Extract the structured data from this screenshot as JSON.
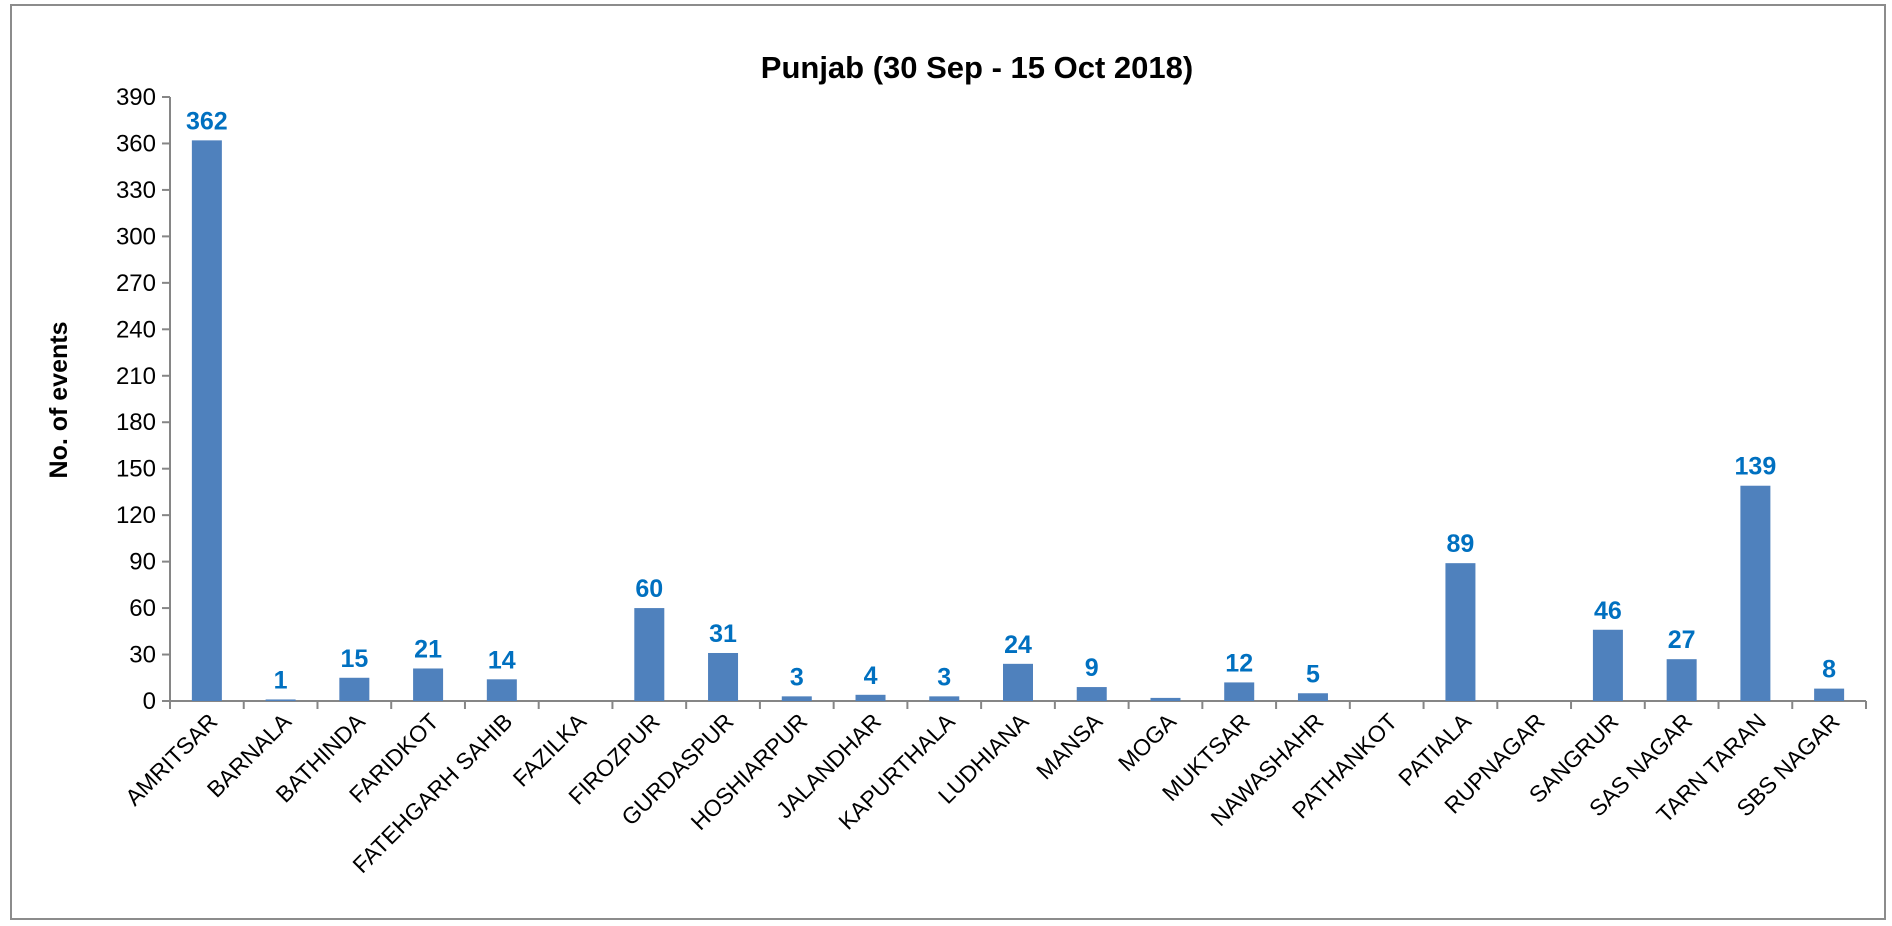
{
  "chart_data": {
    "type": "bar",
    "title": "Punjab (30 Sep - 15 Oct 2018)",
    "xlabel": "",
    "ylabel": "No. of events",
    "ylim": [
      0,
      390
    ],
    "yticks": [
      0,
      30,
      60,
      90,
      120,
      150,
      180,
      210,
      240,
      270,
      300,
      330,
      360,
      390
    ],
    "grid": false,
    "legend": "none",
    "bar_color": "#4f81bd",
    "label_color": "#0070c0",
    "categories": [
      "AMRITSAR",
      "BARNALA",
      "BATHINDA",
      "FARIDKOT",
      "FATEHGARH SAHIB",
      "FAZILKA",
      "FIROZPUR",
      "GURDASPUR",
      "HOSHIARPUR",
      "JALANDHAR",
      "KAPURTHALA",
      "LUDHIANA",
      "MANSA",
      "MOGA",
      "MUKTSAR",
      "NAWASHAHR",
      "PATHANKOT",
      "PATIALA",
      "RUPNAGAR",
      "SANGRUR",
      "SAS NAGAR",
      "TARN TARAN",
      "SBS NAGAR"
    ],
    "values": [
      362,
      1,
      15,
      21,
      14,
      0,
      60,
      31,
      3,
      4,
      3,
      24,
      9,
      2,
      12,
      5,
      0,
      89,
      0,
      46,
      27,
      139,
      8
    ],
    "data_labels": [
      "362",
      "1",
      "15",
      "21",
      "14",
      "",
      "60",
      "31",
      "3",
      "4",
      "3",
      "24",
      "9",
      "",
      "12",
      "5",
      "",
      "89",
      "",
      "46",
      "27",
      "139",
      "8"
    ]
  }
}
